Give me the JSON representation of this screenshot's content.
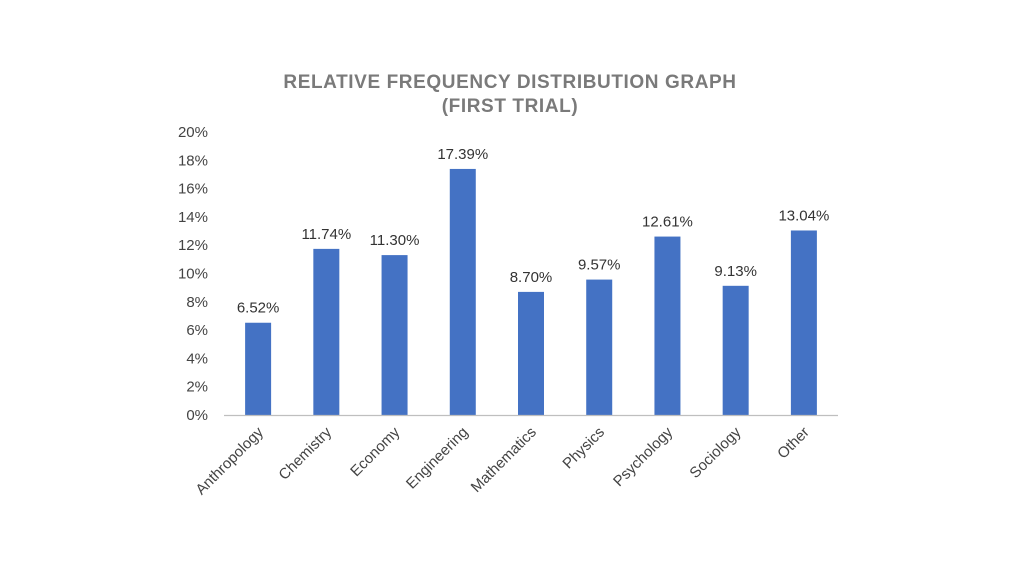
{
  "chart_data": {
    "type": "bar",
    "title_lines": [
      "RELATIVE FREQUENCY DISTRIBUTION GRAPH",
      "(FIRST TRIAL)"
    ],
    "xlabel": "",
    "ylabel": "",
    "categories": [
      "Anthropology",
      "Chemistry",
      "Economy",
      "Engineering",
      "Mathematics",
      "Physics",
      "Psychology",
      "Sociology",
      "Other"
    ],
    "values": [
      6.52,
      11.74,
      11.3,
      17.39,
      8.7,
      9.57,
      12.61,
      9.13,
      13.04
    ],
    "data_labels": [
      "6.52%",
      "11.74%",
      "11.30%",
      "17.39%",
      "8.70%",
      "9.57%",
      "12.61%",
      "9.13%",
      "13.04%"
    ],
    "ylim": [
      0,
      20
    ],
    "yticks": [
      0,
      2,
      4,
      6,
      8,
      10,
      12,
      14,
      16,
      18,
      20
    ],
    "ytick_labels": [
      "0%",
      "2%",
      "4%",
      "6%",
      "8%",
      "10%",
      "12%",
      "14%",
      "16%",
      "18%",
      "20%"
    ],
    "grid": false,
    "legend": "none",
    "bar_color": "#4472C4",
    "axis_color": "#bfbfbf"
  }
}
